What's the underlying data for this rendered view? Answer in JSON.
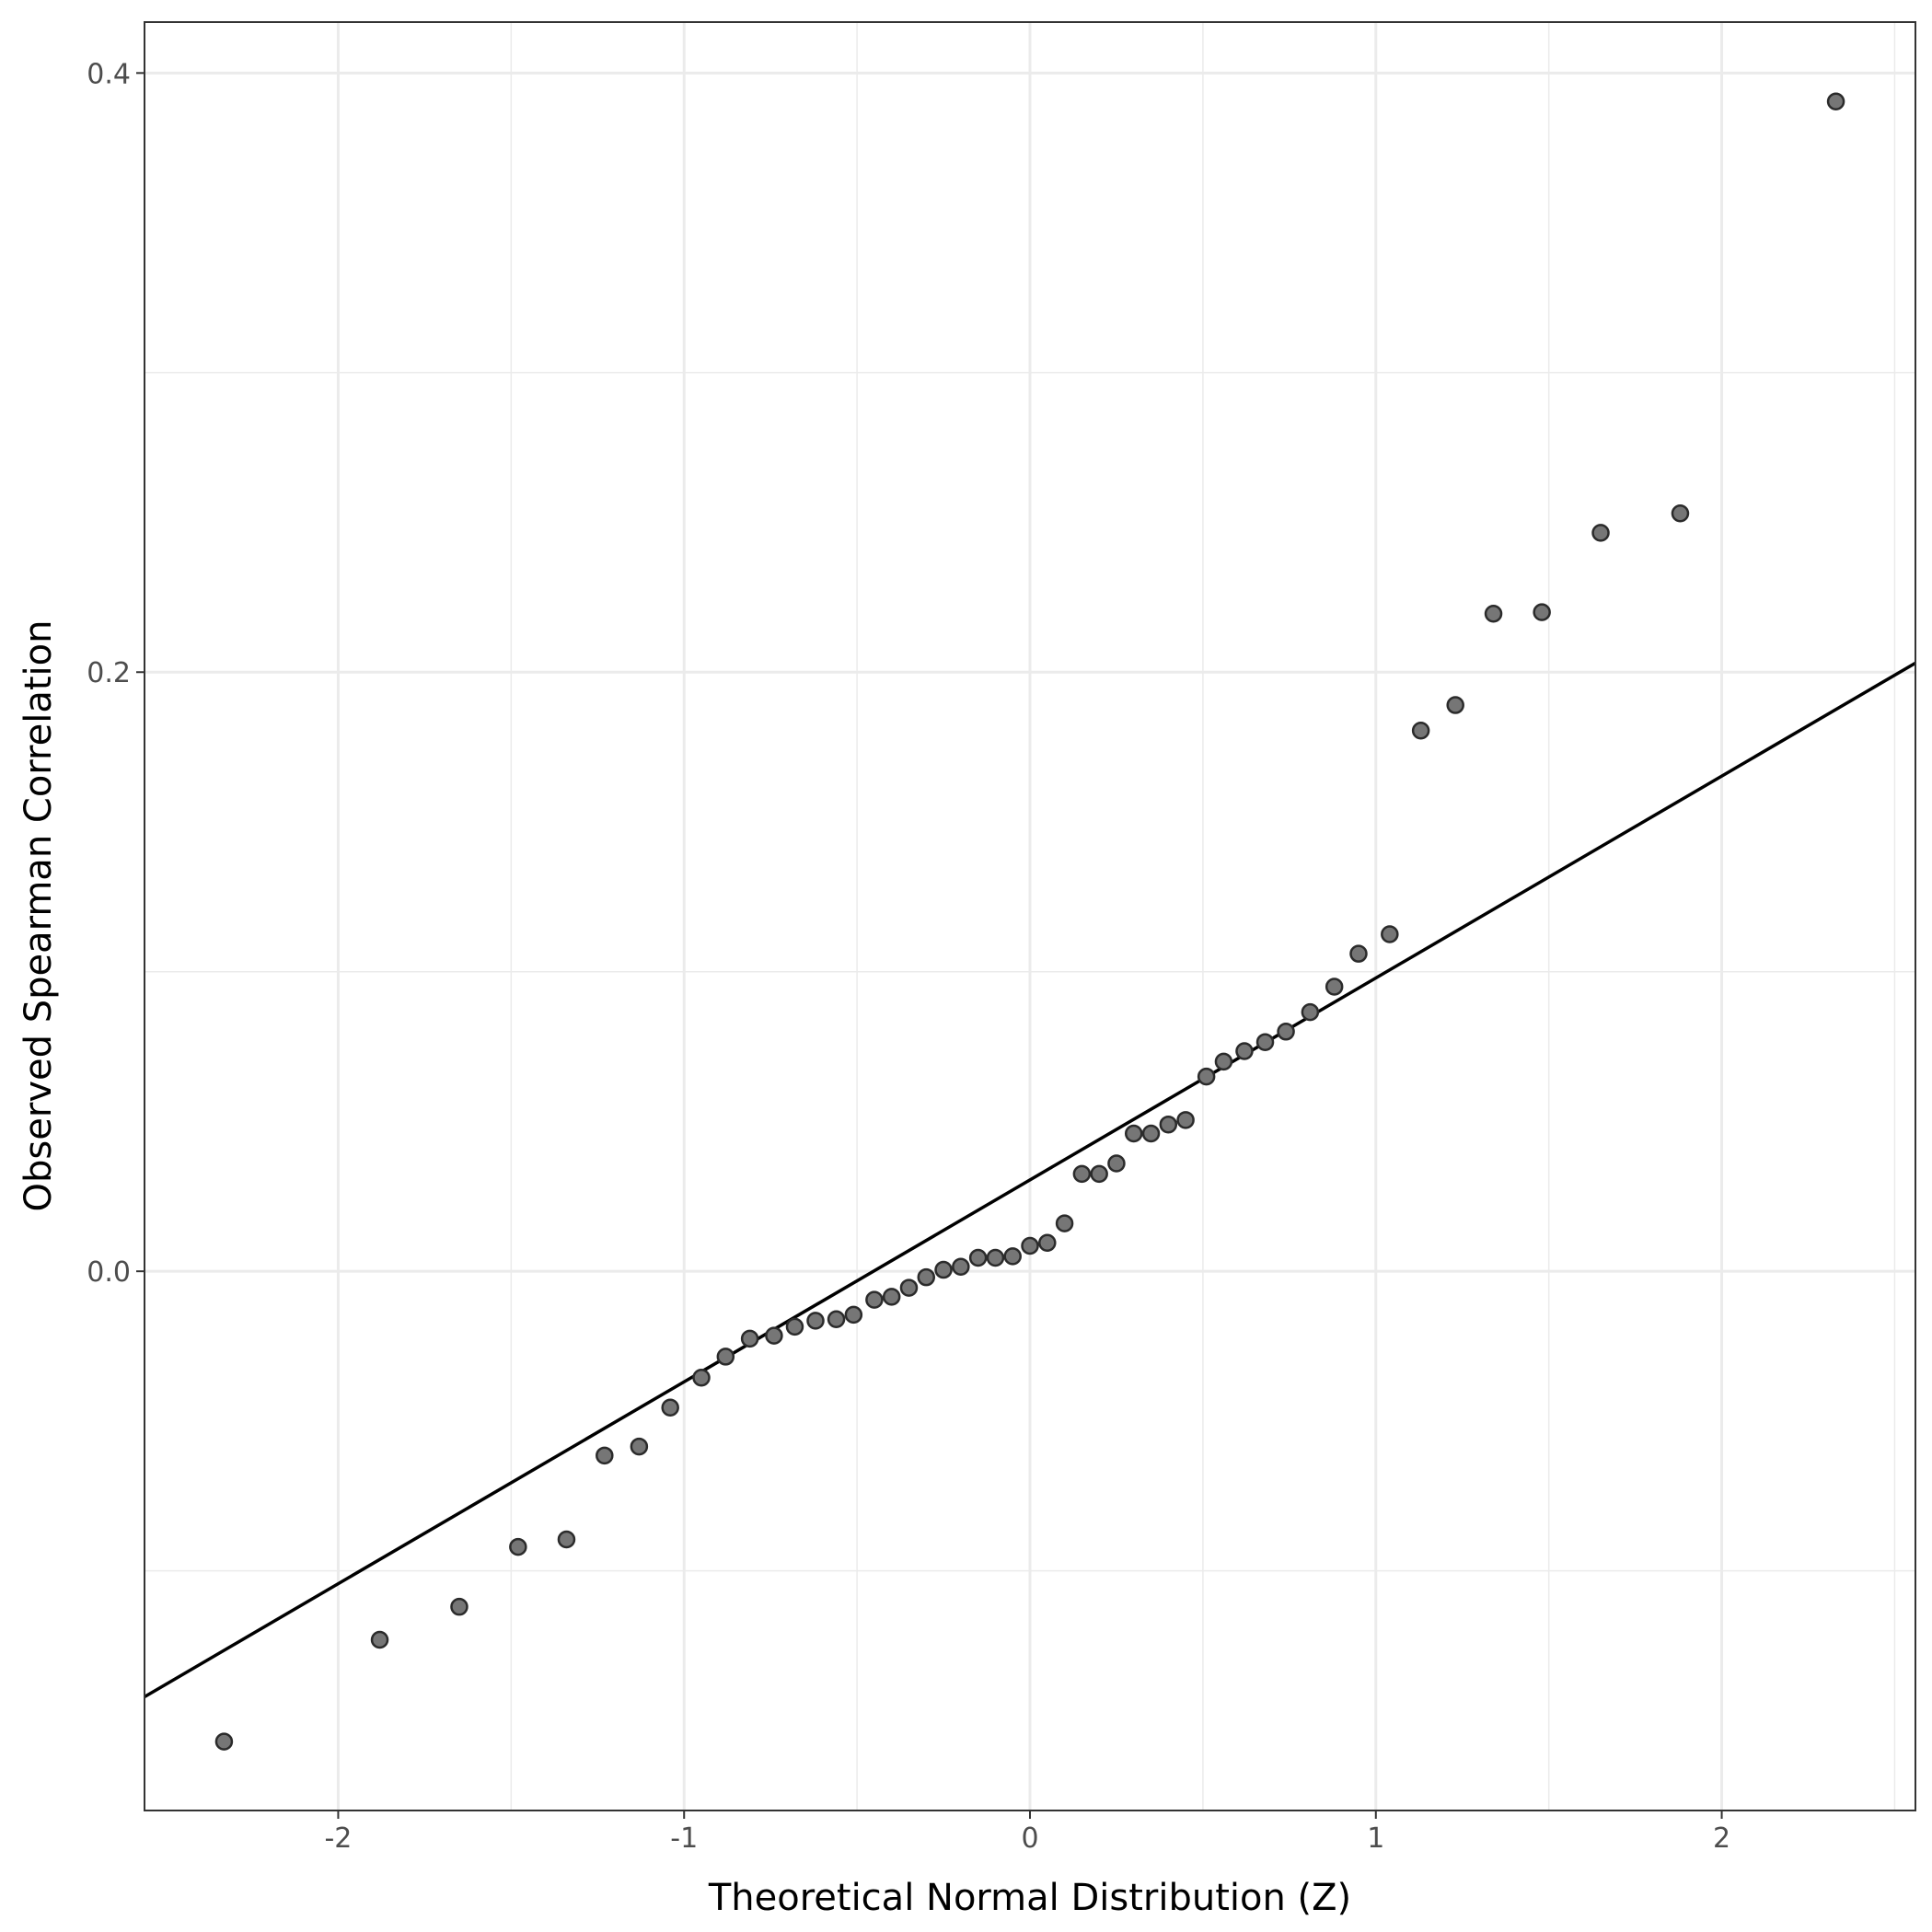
{
  "chart_data": {
    "type": "scatter",
    "title": "",
    "xlabel": "Theoretical Normal Distribution (Z)",
    "ylabel": "Observed Spearman Correlation",
    "xlim": [
      -2.56,
      2.56
    ],
    "ylim": [
      -0.18,
      0.417
    ],
    "x_ticks": [
      -2,
      -1,
      0,
      1,
      2
    ],
    "x_tick_labels": [
      "-2",
      "-1",
      "0",
      "1",
      "2"
    ],
    "y_ticks": [
      0.0,
      0.2,
      0.4
    ],
    "y_tick_labels": [
      "0.0",
      "0.2",
      "0.4"
    ],
    "x_minor_ticks": [
      -1.5,
      -0.5,
      0.5,
      1.5,
      2.5
    ],
    "y_minor_ticks": [
      -0.1,
      0.1,
      0.3
    ],
    "grid": true,
    "reference_line": {
      "intercept": 0.0305,
      "slope": 0.0674
    },
    "series": [
      {
        "x": [
          -2.33,
          -1.88,
          -1.65,
          -1.48,
          -1.34,
          -1.23,
          -1.13,
          -1.04,
          -0.95,
          -0.88,
          -0.81,
          -0.74,
          -0.68,
          -0.62,
          -0.56,
          -0.51,
          -0.45,
          -0.4,
          -0.35,
          -0.3,
          -0.25,
          -0.2,
          -0.15,
          -0.1,
          -0.05,
          0.0,
          0.05,
          0.1,
          0.15,
          0.2,
          0.25,
          0.3,
          0.35,
          0.4,
          0.45,
          0.51,
          0.56,
          0.62,
          0.68,
          0.74,
          0.81,
          0.88,
          0.95,
          1.04,
          1.13,
          1.23,
          1.34,
          1.48,
          1.65,
          1.88,
          2.33
        ],
        "y": [
          -0.157,
          -0.123,
          -0.112,
          -0.092,
          -0.0895,
          -0.0615,
          -0.0585,
          -0.0455,
          -0.0355,
          -0.0285,
          -0.0225,
          -0.0215,
          -0.0185,
          -0.0165,
          -0.016,
          -0.0145,
          -0.0095,
          -0.0085,
          -0.0055,
          -0.002,
          0.0005,
          0.0015,
          0.0045,
          0.0045,
          0.005,
          0.0085,
          0.0095,
          0.016,
          0.0325,
          0.0325,
          0.036,
          0.046,
          0.046,
          0.049,
          0.0505,
          0.065,
          0.07,
          0.0735,
          0.0765,
          0.08,
          0.0865,
          0.095,
          0.106,
          0.1125,
          0.1805,
          0.189,
          0.2195,
          0.22,
          0.2465,
          0.253,
          0.3905
        ]
      }
    ]
  }
}
